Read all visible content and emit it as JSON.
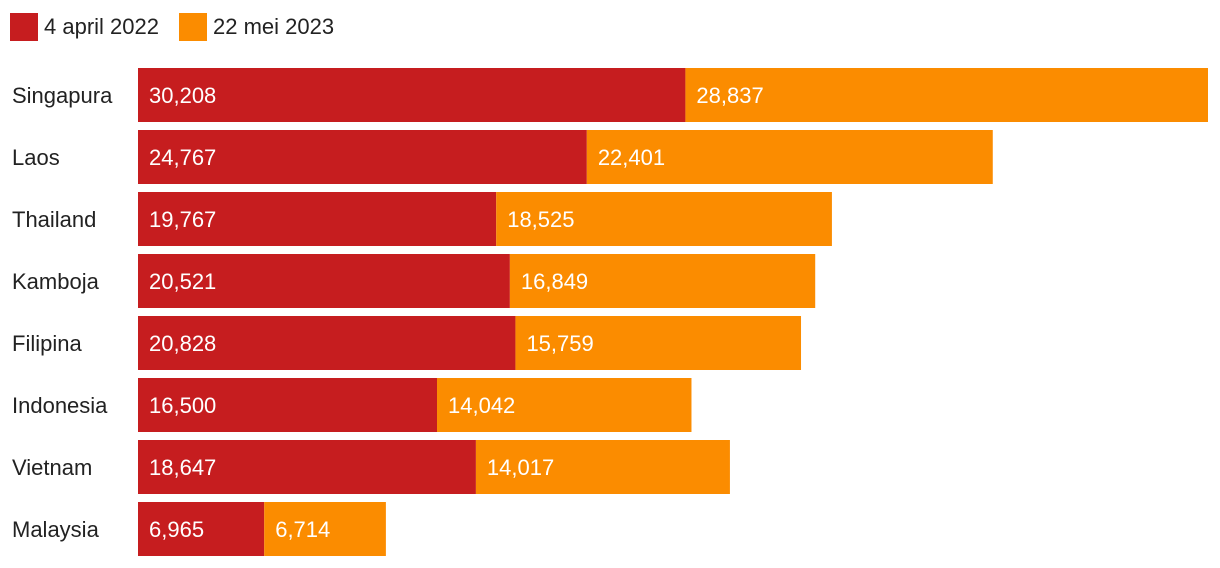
{
  "chart_data": {
    "type": "bar",
    "orientation": "horizontal",
    "stacked": true,
    "categories": [
      "Singapura",
      "Laos",
      "Thailand",
      "Kamboja",
      "Filipina",
      "Indonesia",
      "Vietnam",
      "Malaysia"
    ],
    "series": [
      {
        "name": "4 april 2022",
        "color": "#c61d1f",
        "values": [
          30208,
          24767,
          19767,
          20521,
          20828,
          16500,
          18647,
          6965
        ],
        "labels": [
          "30,208",
          "24,767",
          "19,767",
          "20,521",
          "20,828",
          "16,500",
          "18,647",
          "6,965"
        ]
      },
      {
        "name": "22 mei 2023",
        "color": "#fb8c00",
        "values": [
          28837,
          22401,
          18525,
          16849,
          15759,
          14042,
          14017,
          6714
        ],
        "labels": [
          "28,837",
          "22,401",
          "18,525",
          "16,849",
          "15,759",
          "14,042",
          "14,017",
          "6,714"
        ]
      }
    ],
    "legend_position": "top-left",
    "grid": false
  }
}
